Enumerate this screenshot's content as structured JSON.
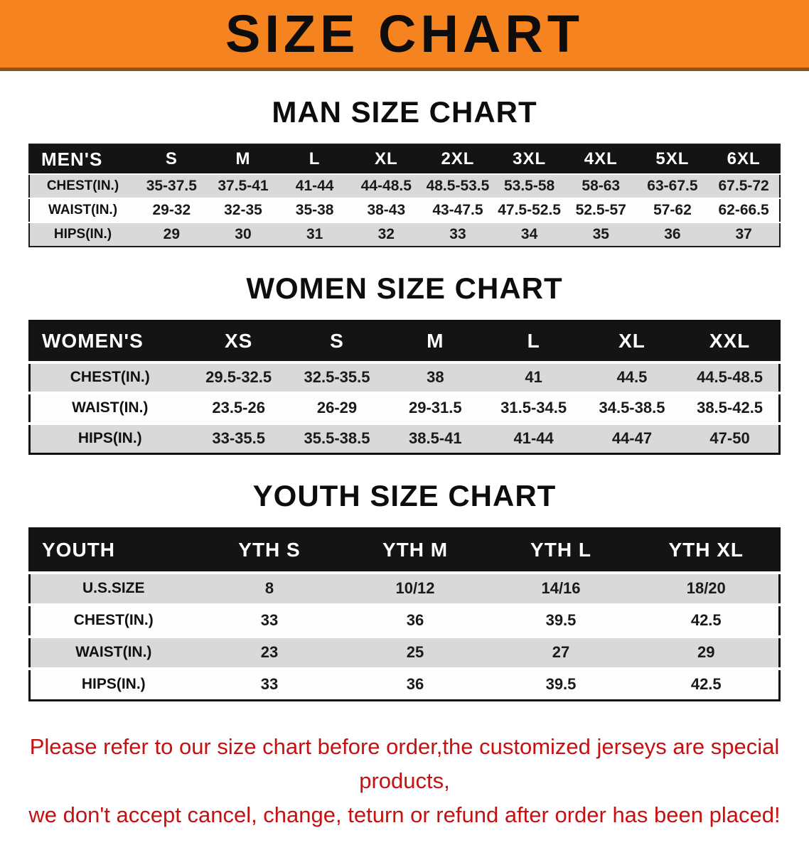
{
  "banner": {
    "title": "SIZE CHART"
  },
  "sections": [
    {
      "id": "men",
      "title": "MAN SIZE CHART",
      "header": [
        "MEN'S",
        "S",
        "M",
        "L",
        "XL",
        "2XL",
        "3XL",
        "4XL",
        "5XL",
        "6XL"
      ],
      "rows": [
        [
          "CHEST(IN.)",
          "35-37.5",
          "37.5-41",
          "41-44",
          "44-48.5",
          "48.5-53.5",
          "53.5-58",
          "58-63",
          "63-67.5",
          "67.5-72"
        ],
        [
          "WAIST(IN.)",
          "29-32",
          "32-35",
          "35-38",
          "38-43",
          "43-47.5",
          "47.5-52.5",
          "52.5-57",
          "57-62",
          "62-66.5"
        ],
        [
          "HIPS(IN.)",
          "29",
          "30",
          "31",
          "32",
          "33",
          "34",
          "35",
          "36",
          "37"
        ]
      ]
    },
    {
      "id": "women",
      "title": "WOMEN SIZE CHART",
      "header": [
        "WOMEN'S",
        "XS",
        "S",
        "M",
        "L",
        "XL",
        "XXL"
      ],
      "rows": [
        [
          "CHEST(IN.)",
          "29.5-32.5",
          "32.5-35.5",
          "38",
          "41",
          "44.5",
          "44.5-48.5"
        ],
        [
          "WAIST(IN.)",
          "23.5-26",
          "26-29",
          "29-31.5",
          "31.5-34.5",
          "34.5-38.5",
          "38.5-42.5"
        ],
        [
          "HIPS(IN.)",
          "33-35.5",
          "35.5-38.5",
          "38.5-41",
          "41-44",
          "44-47",
          "47-50"
        ]
      ]
    },
    {
      "id": "youth",
      "title": "YOUTH SIZE CHART",
      "header": [
        "YOUTH",
        "YTH S",
        "YTH M",
        "YTH L",
        "YTH XL"
      ],
      "rows": [
        [
          "U.S.SIZE",
          "8",
          "10/12",
          "14/16",
          "18/20"
        ],
        [
          "CHEST(IN.)",
          "33",
          "36",
          "39.5",
          "42.5"
        ],
        [
          "WAIST(IN.)",
          "23",
          "25",
          "27",
          "29"
        ],
        [
          "HIPS(IN.)",
          "33",
          "36",
          "39.5",
          "42.5"
        ]
      ]
    }
  ],
  "footer": {
    "line1": "Please refer to our size chart before order,the customized jerseys are special products,",
    "line2": "we don't accept cancel, change, teturn or refund after order has been placed!"
  },
  "colors": {
    "banner_bg": "#f5831f",
    "banner_border": "#8c551e",
    "header_bg": "#141414",
    "row_alt_bg": "#d9d9d9",
    "footer_text": "#c51111"
  }
}
